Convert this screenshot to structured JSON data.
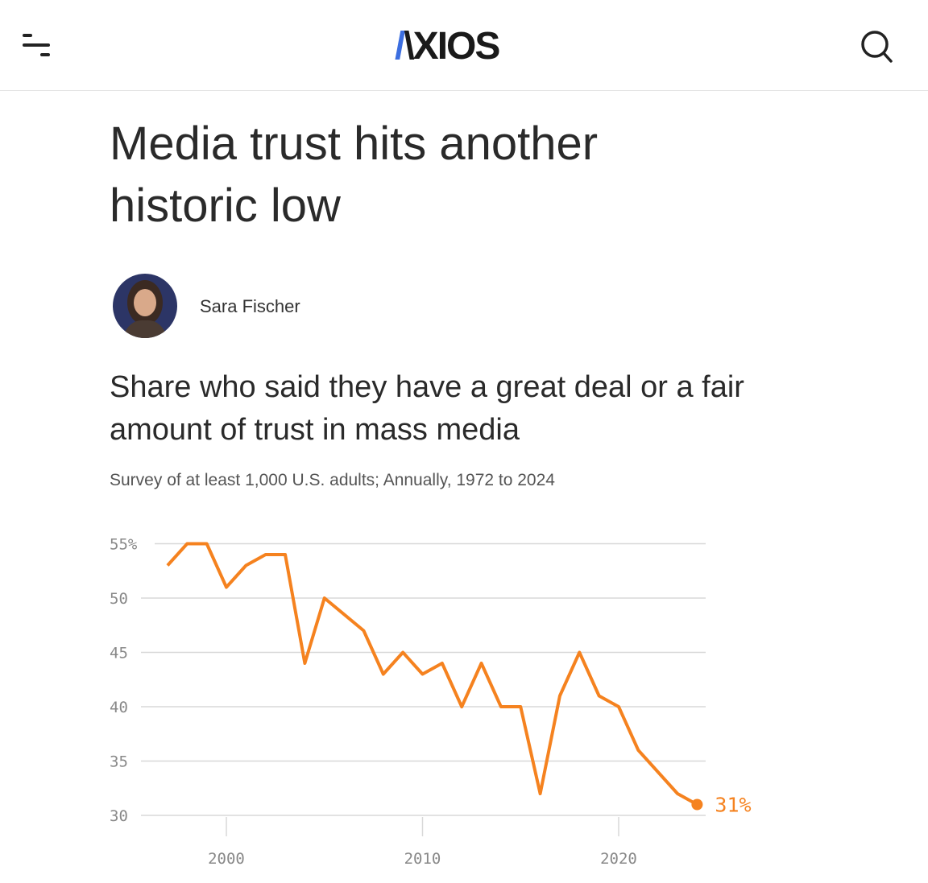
{
  "header": {
    "logo": "AXIOS",
    "menu_icon": "hamburger-icon",
    "search_icon": "search-icon"
  },
  "article": {
    "title": "Media trust hits another historic low",
    "author": "Sara Fischer"
  },
  "chart_data": {
    "type": "line",
    "title": "Share who said they have a great deal or a fair amount of trust in mass media",
    "subtitle": "Survey of at least 1,000 U.S. adults; Annually, 1972 to 2024",
    "xlabel": "",
    "ylabel": "",
    "x": [
      1997,
      1998,
      1999,
      2000,
      2001,
      2002,
      2003,
      2004,
      2005,
      2007,
      2008,
      2009,
      2010,
      2011,
      2012,
      2013,
      2014,
      2015,
      2016,
      2017,
      2018,
      2019,
      2020,
      2021,
      2022,
      2023,
      2024
    ],
    "values": [
      53,
      55,
      55,
      51,
      53,
      54,
      54,
      44,
      50,
      47,
      43,
      45,
      43,
      44,
      40,
      44,
      40,
      40,
      32,
      41,
      45,
      41,
      40,
      36,
      34,
      32,
      31
    ],
    "ylim": [
      30,
      55
    ],
    "y_ticks": [
      "55%",
      "50",
      "45",
      "40",
      "35",
      "30"
    ],
    "y_tick_values": [
      55,
      50,
      45,
      40,
      35,
      30
    ],
    "x_ticks": [
      "2000",
      "2010",
      "2020"
    ],
    "x_tick_values": [
      2000,
      2010,
      2020
    ],
    "end_label": "31%",
    "color": "#f5821f",
    "grid": true
  }
}
